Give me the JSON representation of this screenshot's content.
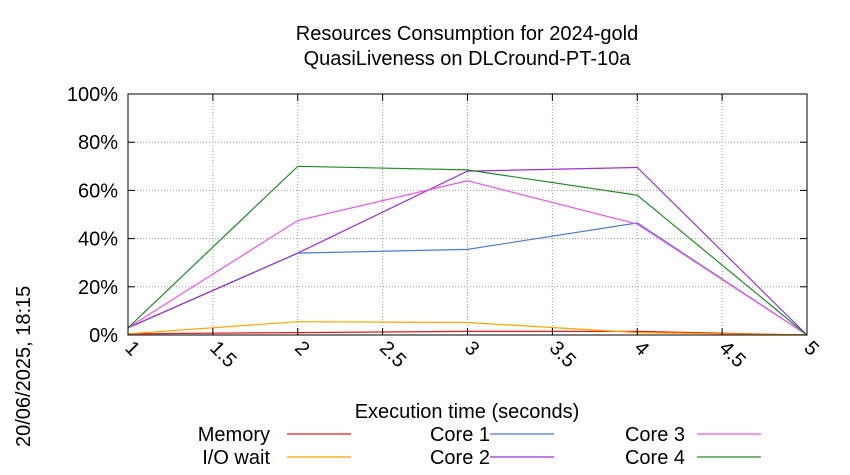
{
  "chart_data": {
    "type": "line",
    "title": "Resources Consumption for 2024-gold",
    "subtitle": "QuasiLiveness on DLCround-PT-10a",
    "xlabel": "Execution time (seconds)",
    "ylabel": "",
    "timestamp": "20/06/2025, 18:15",
    "xlim": [
      1,
      5
    ],
    "ylim": [
      0,
      100
    ],
    "x_ticks": [
      "1",
      "1.5",
      "2",
      "2.5",
      "3",
      "3.5",
      "4",
      "4.5",
      "5"
    ],
    "y_ticks": [
      "0%",
      "20%",
      "40%",
      "60%",
      "80%",
      "100%"
    ],
    "grid": true,
    "legend_position": "bottom",
    "series": [
      {
        "name": "Memory",
        "color": "#e41a1c",
        "x": [
          1,
          2,
          3,
          4,
          5
        ],
        "y": [
          0.5,
          1,
          1.5,
          1.5,
          0
        ]
      },
      {
        "name": "I/O wait",
        "color": "#ffa500",
        "x": [
          1,
          2,
          3,
          4,
          5
        ],
        "y": [
          0.5,
          5.5,
          5.2,
          1,
          0
        ]
      },
      {
        "name": "Core 1",
        "color": "#4d79d8",
        "x": [
          1,
          2,
          3,
          4,
          5
        ],
        "y": [
          3,
          34,
          35.5,
          46.5,
          0
        ]
      },
      {
        "name": "Core 2",
        "color": "#9b30d8",
        "x": [
          1,
          2,
          3,
          4,
          5
        ],
        "y": [
          3,
          34,
          68,
          69.5,
          0
        ]
      },
      {
        "name": "Core 3",
        "color": "#ee55ee",
        "x": [
          1,
          2,
          3,
          4,
          5
        ],
        "y": [
          3,
          47.5,
          64,
          46,
          0
        ]
      },
      {
        "name": "Core 4",
        "color": "#228b22",
        "x": [
          1,
          2,
          3,
          4,
          5
        ],
        "y": [
          3,
          70,
          68.5,
          58,
          0
        ]
      }
    ]
  }
}
